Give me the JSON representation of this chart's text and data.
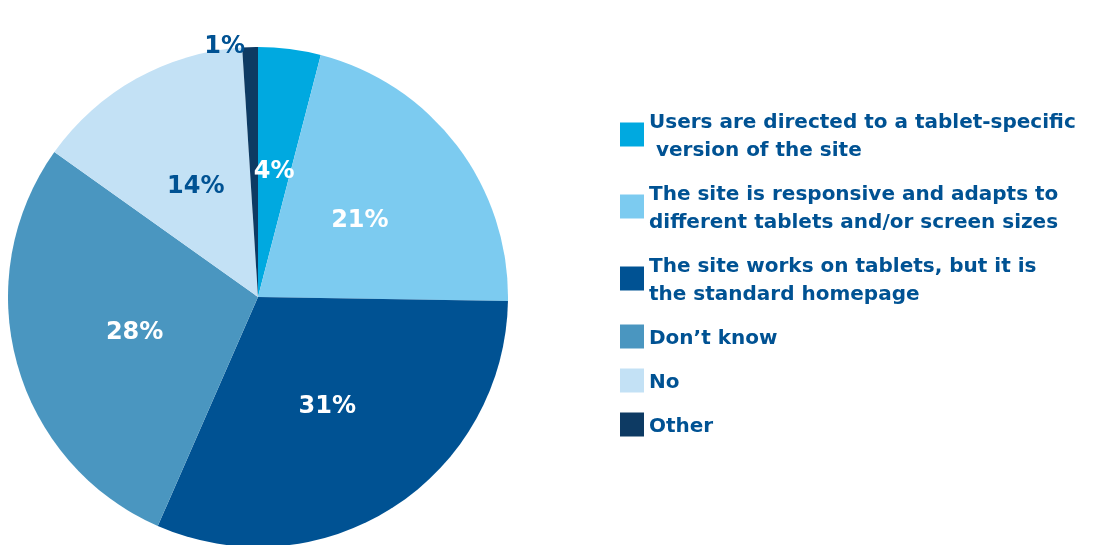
{
  "chart_data": {
    "type": "pie",
    "categories": [
      "Users are directed to a tablet-specific version of the site",
      "The site is responsive and adapts to different tablets and/or screen sizes",
      "The site works on tablets, but it is the standard homepage",
      "Don’t know",
      "No",
      "Other"
    ],
    "values": [
      4,
      21,
      31,
      28,
      14,
      1
    ],
    "colors": [
      "#00a9e0",
      "#7ccbf0",
      "#005293",
      "#4a96c0",
      "#c3e1f5",
      "#0d3a63"
    ],
    "value_labels": [
      "4%",
      "21%",
      "31%",
      "28%",
      "14%",
      "1%"
    ],
    "legend": "right"
  }
}
